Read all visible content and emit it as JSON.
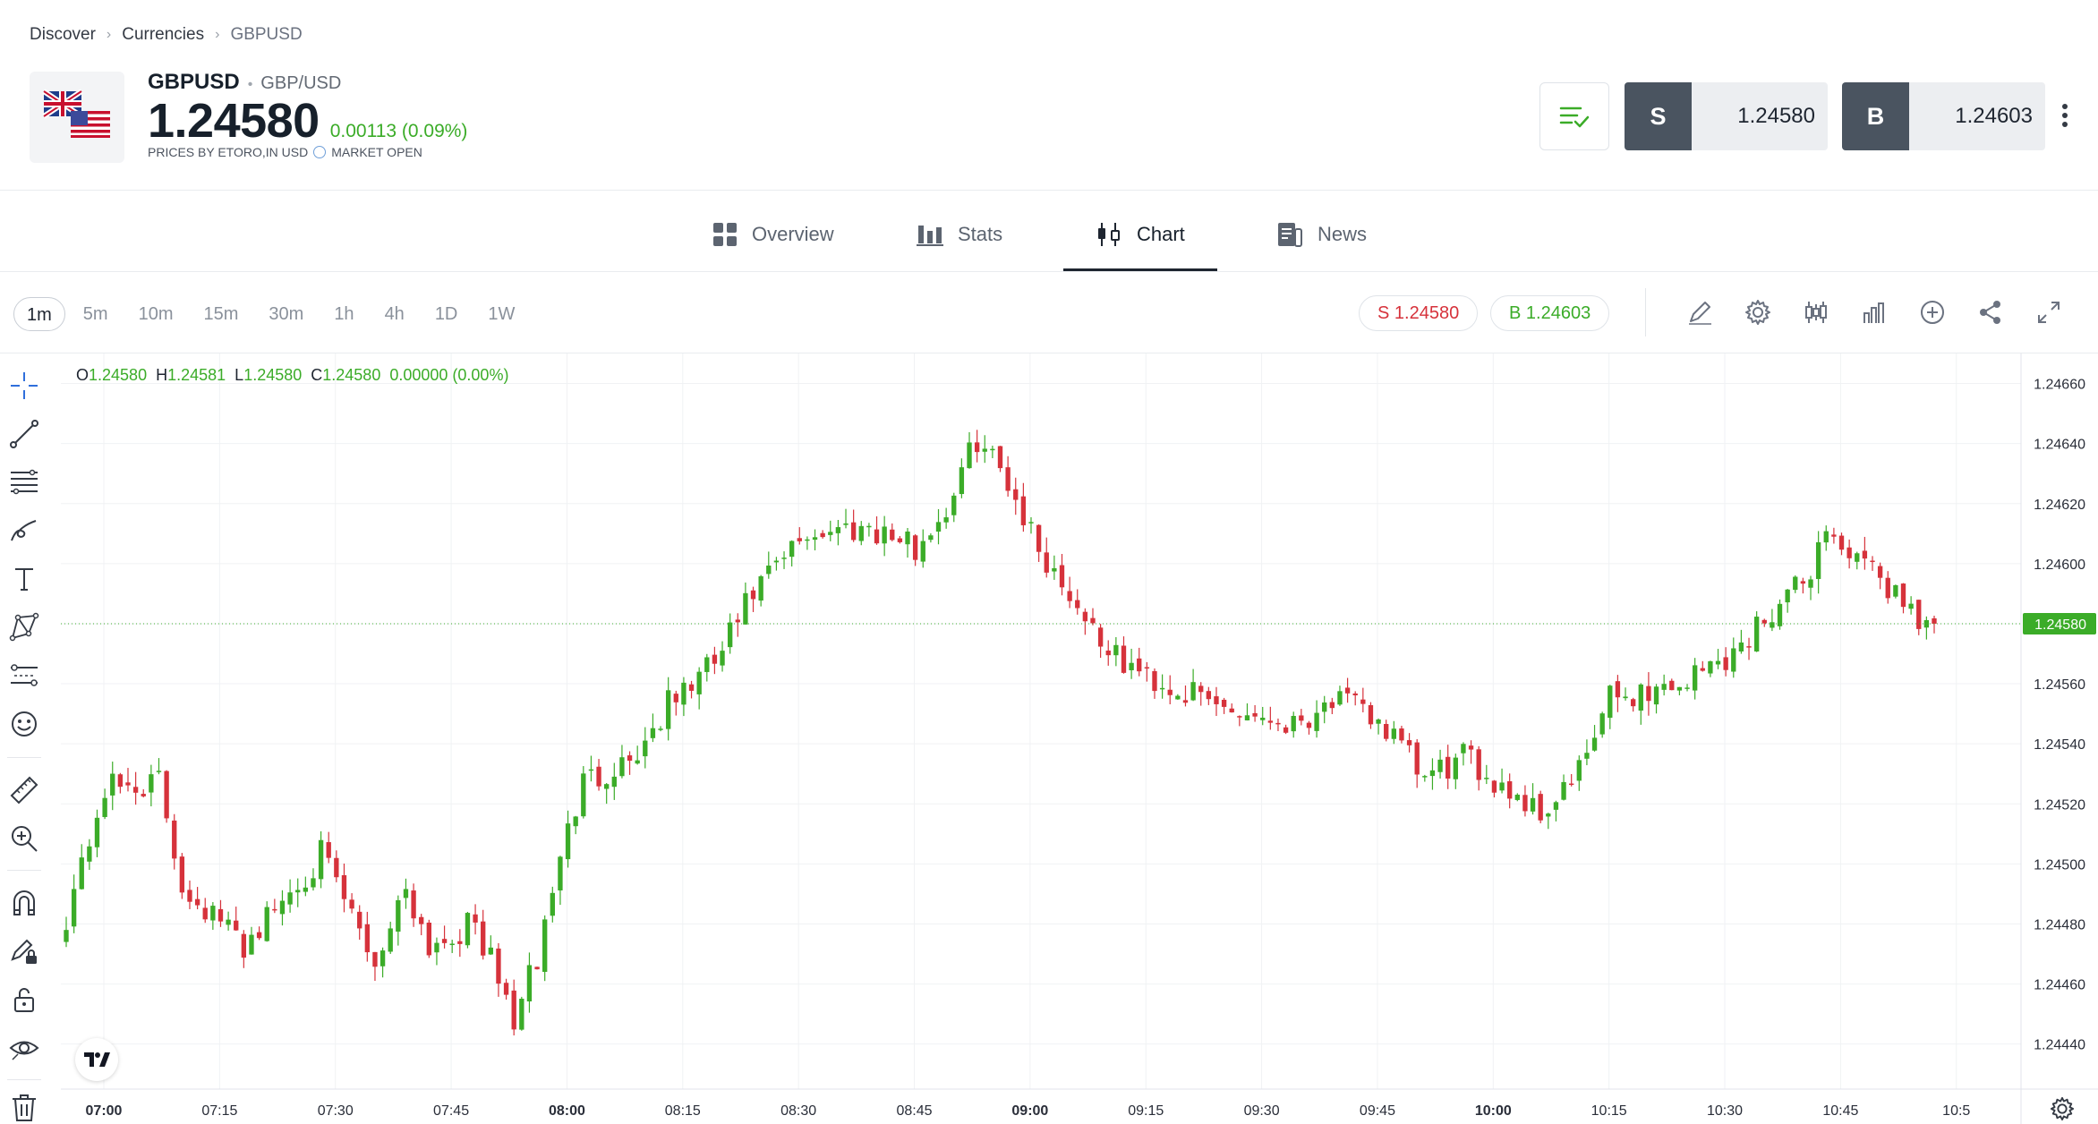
{
  "breadcrumb": {
    "items": [
      "Discover",
      "Currencies",
      "GBPUSD"
    ]
  },
  "instrument": {
    "symbol": "GBPUSD",
    "pair": "GBP/USD",
    "price": "1.24580",
    "change": "0.00113 (0.09%)",
    "price_source": "PRICES BY ETORO,IN USD",
    "market_status": "MARKET OPEN",
    "flag_icons": [
      "uk-flag-icon",
      "us-flag-icon"
    ]
  },
  "trade": {
    "sell_label": "S",
    "sell_price": "1.24580",
    "buy_label": "B",
    "buy_price": "1.24603"
  },
  "tabs": [
    {
      "label": "Overview",
      "icon": "grid-icon"
    },
    {
      "label": "Stats",
      "icon": "bar-stats-icon"
    },
    {
      "label": "Chart",
      "icon": "candles-icon",
      "active": true
    },
    {
      "label": "News",
      "icon": "news-icon"
    }
  ],
  "timeframes": [
    "1m",
    "5m",
    "10m",
    "15m",
    "30m",
    "1h",
    "4h",
    "1D",
    "1W"
  ],
  "active_timeframe": "1m",
  "quote_pills": {
    "sell": "S 1.24580",
    "buy": "B 1.24603"
  },
  "ohlc": {
    "o_label": "O",
    "o": "1.24580",
    "h_label": "H",
    "h": "1.24581",
    "l_label": "L",
    "l": "1.24580",
    "c_label": "C",
    "c": "1.24580",
    "chg": "0.00000 (0.00%)"
  },
  "colors": {
    "up": "#3bac28",
    "down": "#d6323b",
    "accent_dark": "#4a5460",
    "grid": "#f0f2f4",
    "last_price_bg": "#3bac28"
  },
  "chart_data": {
    "type": "candlestick",
    "interval": "1m",
    "last_price": "1.24580",
    "ylim": [
      1.24425,
      1.2467
    ],
    "y_ticks": [
      "1.24660",
      "1.24640",
      "1.24620",
      "1.24600",
      "1.24580",
      "1.24560",
      "1.24540",
      "1.24520",
      "1.24500",
      "1.24480",
      "1.24460",
      "1.24440"
    ],
    "x_ticks": [
      "07:00",
      "07:15",
      "07:30",
      "07:45",
      "08:00",
      "08:15",
      "08:30",
      "08:45",
      "09:00",
      "09:15",
      "09:30",
      "09:45",
      "10:00",
      "10:15",
      "10:30",
      "10:45",
      "10:5"
    ],
    "x_ticks_bold": [
      "07:00",
      "08:00",
      "09:00",
      "10:00"
    ],
    "anchors": [
      [
        0,
        1.24483
      ],
      [
        5,
        1.24525
      ],
      [
        12,
        1.24527
      ],
      [
        15,
        1.24493
      ],
      [
        23,
        1.24473
      ],
      [
        33,
        1.24503
      ],
      [
        40,
        1.24467
      ],
      [
        44,
        1.24493
      ],
      [
        47,
        1.24473
      ],
      [
        53,
        1.2448
      ],
      [
        58,
        1.24448
      ],
      [
        61,
        1.24468
      ],
      [
        64,
        1.24503
      ],
      [
        67,
        1.24527
      ],
      [
        74,
        1.24537
      ],
      [
        78,
        1.24553
      ],
      [
        84,
        1.24567
      ],
      [
        89,
        1.2459
      ],
      [
        96,
        1.2461
      ],
      [
        104,
        1.24613
      ],
      [
        110,
        1.24605
      ],
      [
        114,
        1.24618
      ],
      [
        118,
        1.24642
      ],
      [
        122,
        1.24628
      ],
      [
        126,
        1.24605
      ],
      [
        130,
        1.2459
      ],
      [
        136,
        1.24568
      ],
      [
        142,
        1.2456
      ],
      [
        149,
        1.24553
      ],
      [
        159,
        1.24547
      ],
      [
        164,
        1.24555
      ],
      [
        170,
        1.24548
      ],
      [
        176,
        1.24528
      ],
      [
        181,
        1.24535
      ],
      [
        187,
        1.24525
      ],
      [
        191,
        1.24517
      ],
      [
        196,
        1.2453
      ],
      [
        200,
        1.24555
      ],
      [
        209,
        1.2456
      ],
      [
        217,
        1.24572
      ],
      [
        220,
        1.24583
      ],
      [
        225,
        1.24593
      ],
      [
        228,
        1.24612
      ],
      [
        232,
        1.246
      ],
      [
        236,
        1.24593
      ],
      [
        240,
        1.24583
      ],
      [
        242,
        1.2458
      ]
    ]
  }
}
